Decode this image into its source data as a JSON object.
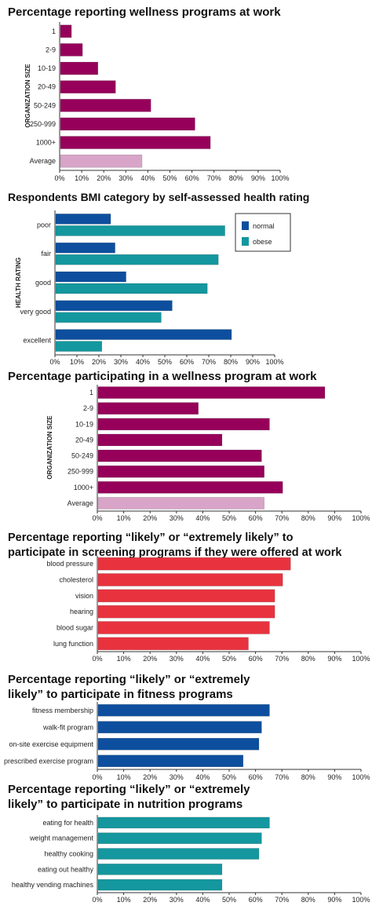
{
  "colors": {
    "magenta": "#96005a",
    "average_pink": "#d8a4c8",
    "navy": "#0d4f9e",
    "teal": "#14979e",
    "red": "#e8333f"
  },
  "chart_data": [
    {
      "id": "c1",
      "type": "bar",
      "orientation": "horizontal",
      "title": "Percentage reporting wellness programs at work",
      "ylabel": "ORGANIZATION SIZE",
      "categories": [
        "1",
        "2-9",
        "10-19",
        "20-49",
        "50-249",
        "250-999",
        "1000+",
        "Average"
      ],
      "values": [
        5,
        10,
        17,
        25,
        41,
        61,
        68,
        37
      ],
      "xlim": [
        0,
        100
      ],
      "xticks": [
        "0%",
        "10%",
        "20%",
        "30%",
        "40%",
        "50%",
        "60%",
        "70%",
        "80%",
        "90%",
        "100%"
      ],
      "colors": [
        "#96005a",
        "#96005a",
        "#96005a",
        "#96005a",
        "#96005a",
        "#96005a",
        "#96005a",
        "#d8a4c8"
      ]
    },
    {
      "id": "c2",
      "type": "bar",
      "orientation": "horizontal",
      "title": "Respondents BMI category by self-assessed health rating",
      "ylabel": "HEALTH RATING",
      "categories": [
        "poor",
        "fair",
        "good",
        "very good",
        "excellent"
      ],
      "series": [
        {
          "name": "normal",
          "color": "#0d4f9e",
          "values": [
            25,
            27,
            32,
            53,
            80
          ]
        },
        {
          "name": "obese",
          "color": "#14979e",
          "values": [
            77,
            74,
            69,
            48,
            21
          ]
        }
      ],
      "legend": "top-right",
      "xlim": [
        0,
        100
      ],
      "xticks": [
        "0%",
        "10%",
        "20%",
        "30%",
        "40%",
        "50%",
        "60%",
        "70%",
        "80%",
        "90%",
        "100%"
      ]
    },
    {
      "id": "c3",
      "type": "bar",
      "orientation": "horizontal",
      "title": "Percentage participating in a wellness program at work",
      "ylabel": "ORGANIZATION SIZE",
      "categories": [
        "1",
        "2-9",
        "10-19",
        "20-49",
        "50-249",
        "250-999",
        "1000+",
        "Average"
      ],
      "values": [
        86,
        38,
        65,
        47,
        62,
        63,
        70,
        63
      ],
      "xlim": [
        0,
        100
      ],
      "xticks": [
        "0%",
        "10%",
        "20%",
        "30%",
        "40%",
        "50%",
        "60%",
        "70%",
        "80%",
        "90%",
        "100%"
      ],
      "colors": [
        "#96005a",
        "#96005a",
        "#96005a",
        "#96005a",
        "#96005a",
        "#96005a",
        "#96005a",
        "#d8a4c8"
      ]
    },
    {
      "id": "c4",
      "type": "bar",
      "orientation": "horizontal",
      "title": "Percentage reporting “likely” or “extremely likely” to\nparticipate in screening programs if they were offered at work",
      "ylabel": "",
      "categories": [
        "blood pressure",
        "cholesterol",
        "vision",
        "hearing",
        "blood sugar",
        "lung function"
      ],
      "values": [
        73,
        70,
        67,
        67,
        65,
        57
      ],
      "xlim": [
        0,
        100
      ],
      "xticks": [
        "0%",
        "10%",
        "20%",
        "30%",
        "40%",
        "50%",
        "60%",
        "70%",
        "80%",
        "90%",
        "100%"
      ],
      "color": "#e8333f"
    },
    {
      "id": "c5",
      "type": "bar",
      "orientation": "horizontal",
      "title": "Percentage reporting “likely” or “extremely\nlikely” to participate in fitness programs",
      "ylabel": "",
      "categories": [
        "fitness membership",
        "walk-fit program",
        "on-site exercise equipment",
        "prescribed exercise program"
      ],
      "values": [
        65,
        62,
        61,
        55
      ],
      "xlim": [
        0,
        100
      ],
      "xticks": [
        "0%",
        "10%",
        "20%",
        "30%",
        "40%",
        "50%",
        "60%",
        "70%",
        "80%",
        "90%",
        "100%"
      ],
      "color": "#0d4f9e"
    },
    {
      "id": "c6",
      "type": "bar",
      "orientation": "horizontal",
      "title": "Percentage reporting “likely” or “extremely\nlikely” to participate in nutrition programs",
      "ylabel": "",
      "categories": [
        "eating for health",
        "weight management",
        "healthy cooking",
        "eating out healthy",
        "healthy vending machines"
      ],
      "values": [
        65,
        62,
        61,
        47,
        47
      ],
      "xlim": [
        0,
        100
      ],
      "xticks": [
        "0%",
        "10%",
        "20%",
        "30%",
        "40%",
        "50%",
        "60%",
        "70%",
        "80%",
        "90%",
        "100%"
      ],
      "color": "#14979e"
    }
  ]
}
